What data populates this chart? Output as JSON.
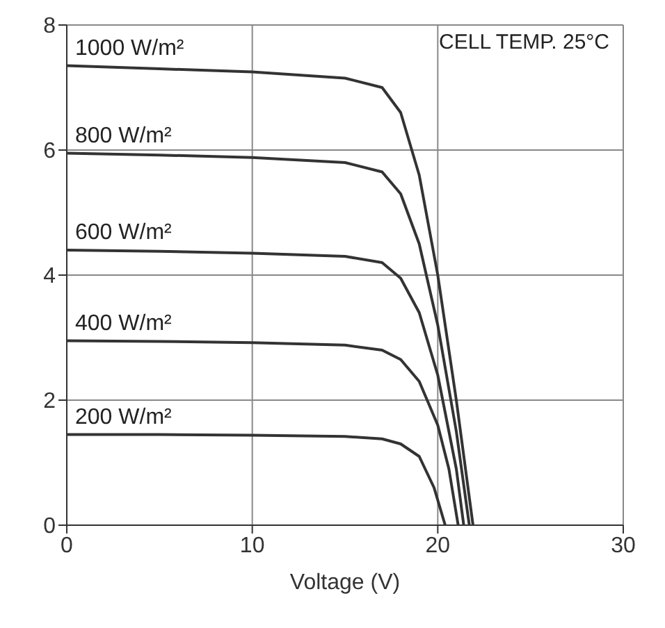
{
  "chart_data": {
    "type": "line",
    "xlabel": "Voltage (V)",
    "annotations": [
      "CELL TEMP. 25°C"
    ],
    "xlim": [
      0,
      30
    ],
    "xticks": [
      0,
      10,
      20,
      30
    ],
    "ylim": [
      0,
      8
    ],
    "yticks": [
      0,
      2,
      4,
      6,
      8
    ],
    "grid": true,
    "legend": false,
    "marker": "none",
    "line_style": "solid",
    "series": [
      {
        "name": "1000 W/m²",
        "color": "#333333",
        "x": [
          0,
          5,
          10,
          15,
          17,
          18,
          19,
          20,
          21,
          21.9
        ],
        "values": [
          7.35,
          7.3,
          7.25,
          7.15,
          7.0,
          6.6,
          5.6,
          4.0,
          2.0,
          0
        ]
      },
      {
        "name": "800 W/m²",
        "color": "#333333",
        "x": [
          0,
          5,
          10,
          15,
          17,
          18,
          19,
          20,
          21,
          21.7
        ],
        "values": [
          5.95,
          5.92,
          5.88,
          5.8,
          5.65,
          5.3,
          4.5,
          3.2,
          1.5,
          0
        ]
      },
      {
        "name": "600 W/m²",
        "color": "#333333",
        "x": [
          0,
          5,
          10,
          15,
          17,
          18,
          19,
          20,
          21,
          21.4
        ],
        "values": [
          4.4,
          4.38,
          4.35,
          4.3,
          4.2,
          3.95,
          3.4,
          2.4,
          0.9,
          0
        ]
      },
      {
        "name": "400 W/m²",
        "color": "#333333",
        "x": [
          0,
          5,
          10,
          15,
          17,
          18,
          19,
          20,
          20.6,
          21.1
        ],
        "values": [
          2.95,
          2.94,
          2.92,
          2.88,
          2.8,
          2.65,
          2.3,
          1.6,
          0.9,
          0
        ]
      },
      {
        "name": "200 W/m²",
        "color": "#333333",
        "x": [
          0,
          5,
          10,
          15,
          17,
          18,
          19,
          19.8,
          20.4
        ],
        "values": [
          1.45,
          1.45,
          1.44,
          1.42,
          1.38,
          1.3,
          1.1,
          0.6,
          0
        ]
      }
    ]
  }
}
